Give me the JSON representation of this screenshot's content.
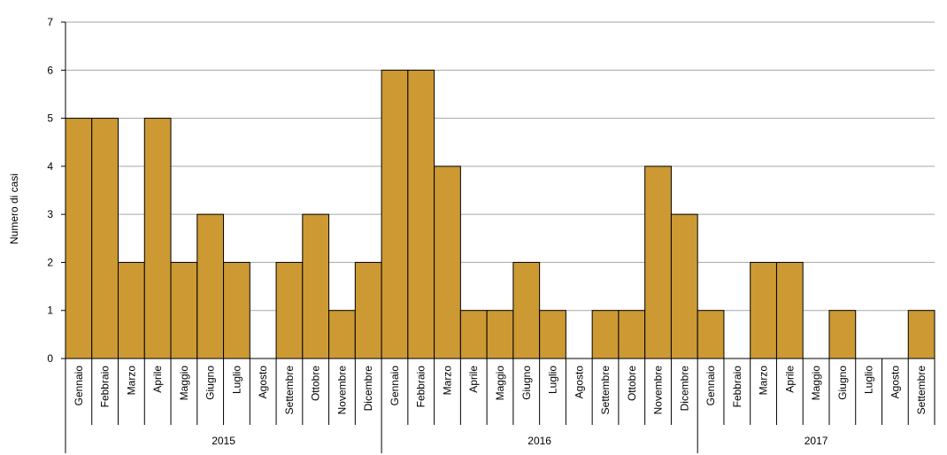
{
  "chart_data": {
    "type": "bar",
    "ylabel": "Numero di casi",
    "xlabel": "",
    "ylim": [
      0,
      7
    ],
    "yticks": [
      "0",
      "1",
      "2",
      "3",
      "4",
      "5",
      "6",
      "7"
    ],
    "grid": true,
    "bar_color": "#CC9933",
    "bar_edge_color": "#000000",
    "grid_color": "#A6A6A6",
    "groups": [
      {
        "year": "2015",
        "categories": [
          "Gennaio",
          "Febbraio",
          "Marzo",
          "Aprile",
          "Maggio",
          "Giugno",
          "Luglio",
          "Agosto",
          "Settembre",
          "Ottobre",
          "Novembre",
          "Dicembre"
        ],
        "values": [
          5,
          5,
          2,
          5,
          2,
          3,
          2,
          0,
          2,
          3,
          1,
          2
        ]
      },
      {
        "year": "2016",
        "categories": [
          "Gennaio",
          "Febbraio",
          "Marzo",
          "Aprile",
          "Maggio",
          "Giugno",
          "Luglio",
          "Agosto",
          "Settembre",
          "Ottobre",
          "Novembre",
          "Dicembre"
        ],
        "values": [
          6,
          6,
          4,
          1,
          1,
          2,
          1,
          0,
          1,
          1,
          4,
          3
        ]
      },
      {
        "year": "2017",
        "categories": [
          "Gennaio",
          "Febbraio",
          "Marzo",
          "Aprile",
          "Maggio",
          "Giugno",
          "Luglio",
          "Agosto",
          "Settembre"
        ],
        "values": [
          1,
          0,
          2,
          2,
          0,
          1,
          0,
          0,
          1
        ]
      }
    ]
  }
}
